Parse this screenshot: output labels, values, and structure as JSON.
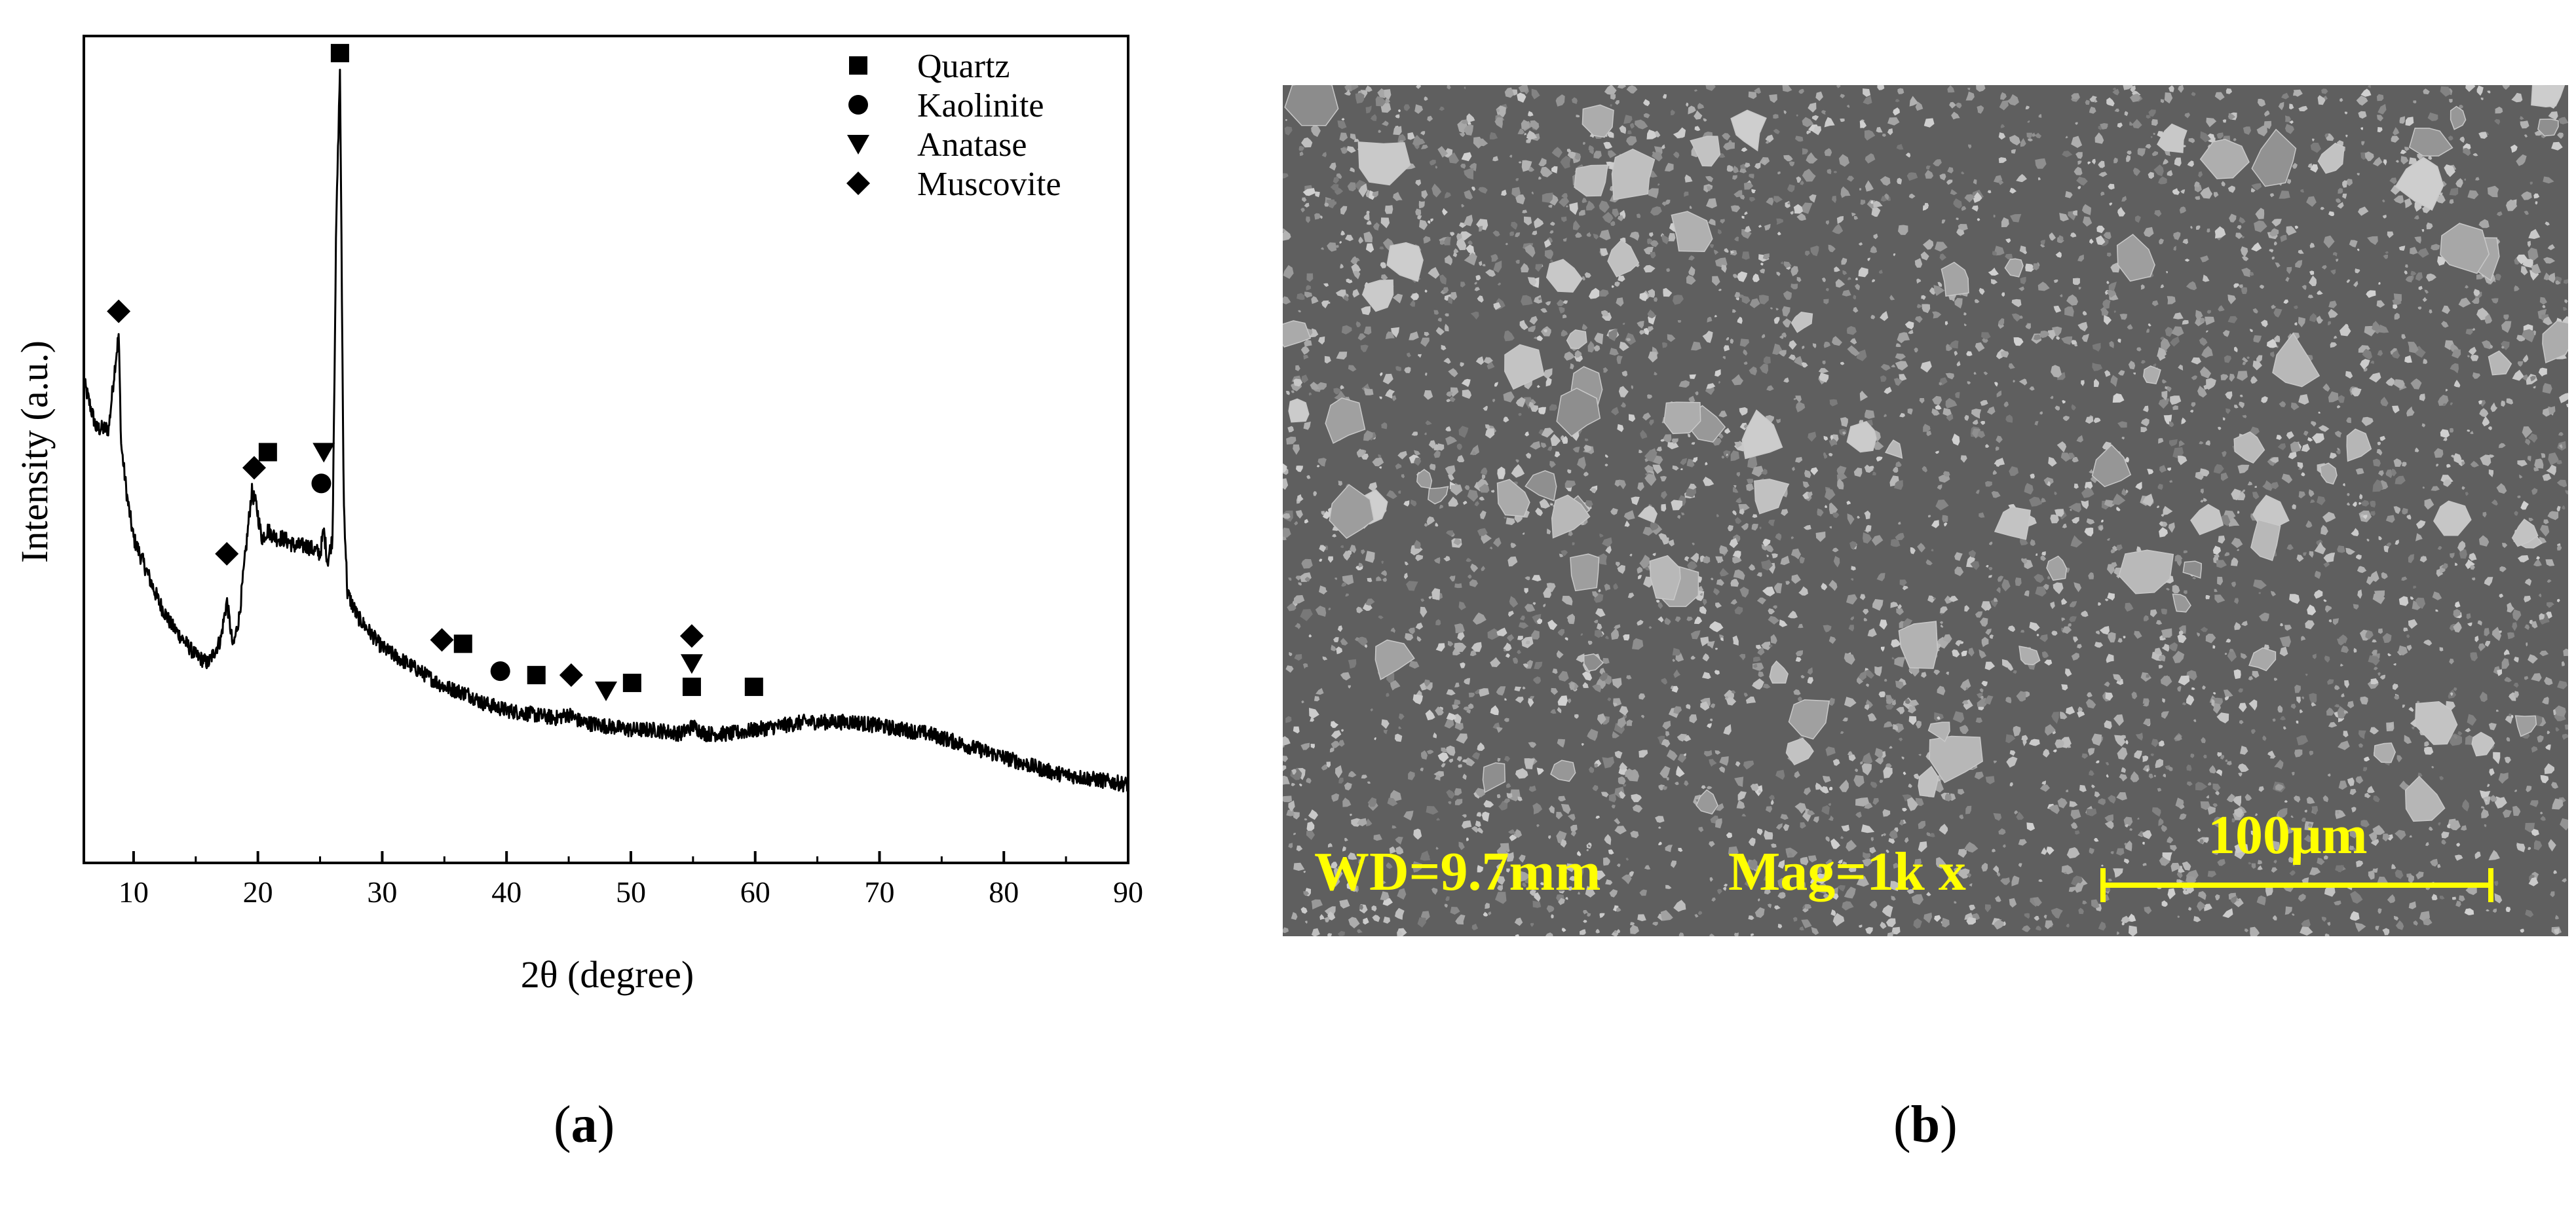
{
  "chart_data": {
    "type": "line",
    "xlabel": "2θ (degree)",
    "ylabel": "Intensity (a.u.)",
    "xlim": [
      6,
      90
    ],
    "ylim": [
      0,
      100
    ],
    "xticks": [
      "10",
      "20",
      "30",
      "40",
      "50",
      "60",
      "70",
      "80",
      "90"
    ],
    "yticks_shown": false,
    "grid": false,
    "legend_position": "top-right",
    "legend": [
      {
        "name": "Quartz",
        "marker": "square"
      },
      {
        "name": "Kaolinite",
        "marker": "circle"
      },
      {
        "name": "Anatase",
        "marker": "triangle-down"
      },
      {
        "name": "Muscovite",
        "marker": "diamond"
      }
    ],
    "series": [
      {
        "values_x": [
          6,
          7,
          8,
          8.5,
          8.8,
          9.0,
          9.5,
          10,
          11,
          12,
          13,
          14,
          15,
          16,
          17,
          17.5,
          18,
          18.5,
          19,
          19.5,
          19.9,
          20.3,
          20.8,
          21.5,
          22,
          23,
          24,
          25,
          25.3,
          25.6,
          26,
          26.3,
          26.6,
          26.9,
          27.2,
          28,
          29,
          30,
          32,
          34,
          35,
          36,
          37,
          38,
          40,
          42,
          44,
          45,
          46,
          48,
          50,
          52,
          54,
          55,
          56,
          58,
          60,
          62,
          64,
          66,
          68,
          70,
          72,
          74,
          76,
          78,
          80,
          82,
          84,
          86,
          88,
          90
        ],
        "values_y": [
          60,
          54,
          54,
          62,
          66,
          52,
          45,
          40,
          36,
          32,
          29,
          27,
          25,
          24,
          27,
          32,
          26,
          30,
          38,
          46,
          44,
          40,
          41,
          40,
          40,
          39,
          39,
          38,
          41,
          37,
          40,
          80,
          100,
          45,
          33,
          30,
          28,
          26,
          24,
          22,
          21,
          20.5,
          20,
          19,
          18,
          17.5,
          17,
          17.5,
          16.5,
          16,
          15.5,
          15.5,
          15,
          16,
          15,
          15,
          15.5,
          16,
          16.5,
          16.5,
          16.5,
          16,
          15.5,
          15,
          14,
          13,
          12,
          11,
          10,
          9.5,
          9,
          8.5
        ]
      }
    ],
    "peak_markers": [
      {
        "phase": "Muscovite",
        "x": 8.8,
        "y": 69
      },
      {
        "phase": "Muscovite",
        "x": 17.5,
        "y": 38
      },
      {
        "phase": "Muscovite",
        "x": 19.7,
        "y": 49
      },
      {
        "phase": "Quartz",
        "x": 20.8,
        "y": 51
      },
      {
        "phase": "Kaolinite",
        "x": 25.1,
        "y": 47
      },
      {
        "phase": "Anatase",
        "x": 25.3,
        "y": 51
      },
      {
        "phase": "Quartz",
        "x": 26.6,
        "y": 102
      },
      {
        "phase": "Muscovite",
        "x": 34.8,
        "y": 27
      },
      {
        "phase": "Quartz",
        "x": 36.5,
        "y": 26.5
      },
      {
        "phase": "Kaolinite",
        "x": 39.5,
        "y": 23
      },
      {
        "phase": "Quartz",
        "x": 42.4,
        "y": 22.5
      },
      {
        "phase": "Muscovite",
        "x": 45.2,
        "y": 22.5
      },
      {
        "phase": "Anatase",
        "x": 48,
        "y": 20.5
      },
      {
        "phase": "Quartz",
        "x": 50.1,
        "y": 21.5
      },
      {
        "phase": "Quartz",
        "x": 54.9,
        "y": 21
      },
      {
        "phase": "Anatase",
        "x": 54.9,
        "y": 24
      },
      {
        "phase": "Muscovite",
        "x": 54.9,
        "y": 27.5
      },
      {
        "phase": "Quartz",
        "x": 59.9,
        "y": 21
      }
    ]
  },
  "sem_image": {
    "wd_label": "WD=9.7mm",
    "mag_label": "Mag=1k x",
    "scale_bar_label": "100μm",
    "annotation_color": "#ffff00",
    "background_color": "#5f5f5f"
  },
  "captions": {
    "a": "a",
    "b": "b"
  }
}
